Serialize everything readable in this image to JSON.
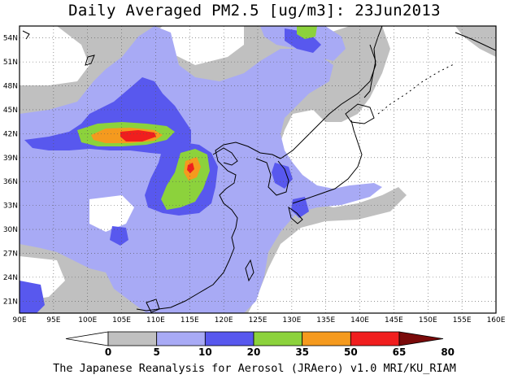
{
  "title": "Daily Averaged PM2.5 [ug/m3]: 23Jun2013",
  "footer": "The Japanese Reanalysis for Aerosol (JRAero) v1.0 MRI/KU_RIAM",
  "map": {
    "lon_range": [
      90,
      160
    ],
    "lat_range": [
      19.5,
      55.5
    ],
    "lon_ticks": [
      "90E",
      "95E",
      "100E",
      "105E",
      "110E",
      "115E",
      "120E",
      "125E",
      "130E",
      "135E",
      "140E",
      "145E",
      "150E",
      "155E",
      "160E"
    ],
    "lat_ticks": [
      "54N",
      "51N",
      "48N",
      "45N",
      "42N",
      "39N",
      "36N",
      "33N",
      "30N",
      "27N",
      "24N",
      "21N"
    ],
    "lat_tick_values": [
      54,
      51,
      48,
      45,
      42,
      39,
      36,
      33,
      30,
      27,
      24,
      21
    ],
    "grid": true
  },
  "colorbar": {
    "levels": [
      "0",
      "5",
      "10",
      "20",
      "35",
      "50",
      "65",
      "80"
    ],
    "colors": [
      "#ffffff",
      "#c0c0c0",
      "#a8aaf5",
      "#5858ee",
      "#8cd23c",
      "#f59a1e",
      "#f01e1e",
      "#7a0a0a"
    ],
    "extend": "both"
  }
}
